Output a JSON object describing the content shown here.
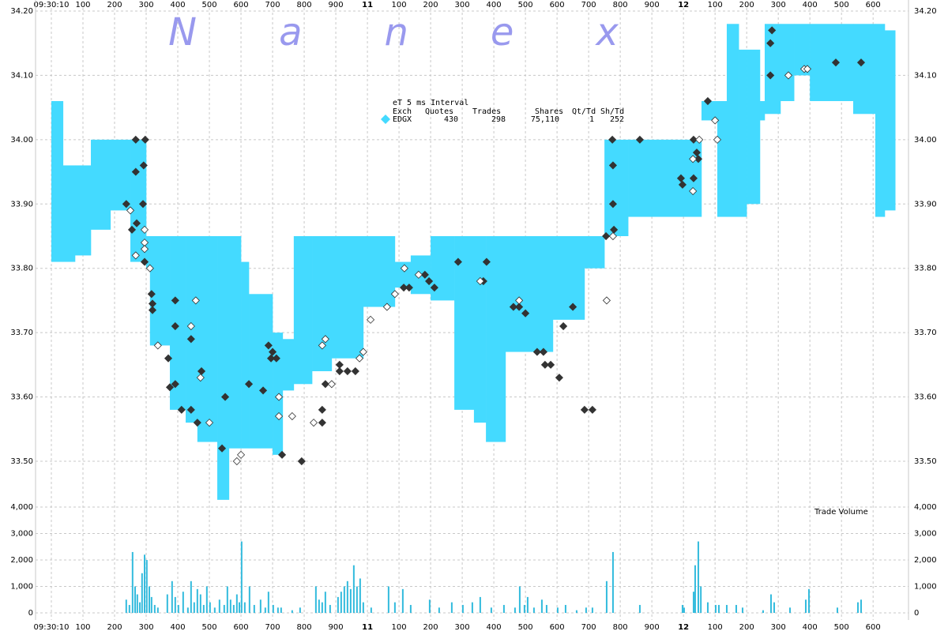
{
  "chart_data": [
    {
      "type": "band",
      "watermark": "Nanex",
      "xlim": [
        -50,
        2712
      ],
      "xticks": [
        {
          "value": 0,
          "label": "09:30:10"
        },
        100,
        200,
        300,
        400,
        500,
        600,
        700,
        800,
        900,
        {
          "value": 1000,
          "label": "11"
        },
        {
          "value": 1100,
          "label": "100"
        },
        {
          "value": 1200,
          "label": "200"
        },
        {
          "value": 1300,
          "label": "300"
        },
        {
          "value": 1400,
          "label": "400"
        },
        {
          "value": 1500,
          "label": "500"
        },
        {
          "value": 1600,
          "label": "600"
        },
        {
          "value": 1700,
          "label": "700"
        },
        {
          "value": 1800,
          "label": "800"
        },
        {
          "value": 1900,
          "label": "900"
        },
        {
          "value": 2000,
          "label": "12"
        },
        {
          "value": 2100,
          "label": "100"
        },
        {
          "value": 2200,
          "label": "200"
        },
        {
          "value": 2300,
          "label": "300"
        },
        {
          "value": 2400,
          "label": "400"
        },
        {
          "value": 2500,
          "label": "500"
        },
        {
          "value": 2600,
          "label": "600"
        }
      ],
      "ylim": [
        33.43,
        34.2
      ],
      "yticks": [
        {
          "value": 33.5,
          "label": "33.50"
        },
        {
          "value": 33.6,
          "label": "33.60"
        },
        {
          "value": 33.7,
          "label": "33.70"
        },
        {
          "value": 33.8,
          "label": "33.80"
        },
        {
          "value": 33.9,
          "label": "33.90"
        },
        {
          "value": 34.0,
          "label": "34.00"
        },
        {
          "value": 34.1,
          "label": "34.10"
        },
        {
          "value": 34.2,
          "label": "34.20"
        }
      ],
      "grid": true,
      "legend": {
        "title": "eT 5 ms Interval",
        "columns": [
          "Exch",
          "Quotes",
          "Trades",
          "Shares",
          "Qt/Td",
          "Sh/Td"
        ],
        "rows": [
          {
            "name": "EDGX",
            "color": "#44daff",
            "cells": [
              "430",
              "298",
              "75,110",
              "1",
              "252"
            ]
          }
        ]
      },
      "band": {
        "color": "#44daff",
        "x": [
          0,
          37,
          75,
          125,
          187,
          250,
          300,
          312,
          375,
          425,
          462,
          525,
          562,
          600,
          625,
          662,
          700,
          732,
          767,
          825,
          887,
          987,
          1087,
          1137,
          1200,
          1275,
          1337,
          1375,
          1437,
          1587,
          1687,
          1750,
          1825,
          2012,
          2057,
          2107,
          2137,
          2175,
          2200,
          2242,
          2257,
          2307,
          2350,
          2400,
          2537,
          2607,
          2637,
          2670
        ],
        "high": [
          34.06,
          33.96,
          33.96,
          34.0,
          34.0,
          34.0,
          33.85,
          33.85,
          33.85,
          33.85,
          33.85,
          33.85,
          33.85,
          33.81,
          33.76,
          33.76,
          33.7,
          33.69,
          33.85,
          33.85,
          33.85,
          33.85,
          33.81,
          33.82,
          33.85,
          33.85,
          33.85,
          33.85,
          33.85,
          33.85,
          33.85,
          34.0,
          34.0,
          34.0,
          34.06,
          34.06,
          34.18,
          34.14,
          34.14,
          34.06,
          34.18,
          34.18,
          34.18,
          34.18,
          34.18,
          34.18,
          34.17,
          null
        ],
        "low": [
          33.81,
          33.81,
          33.82,
          33.86,
          33.89,
          33.81,
          33.8,
          33.68,
          33.58,
          33.56,
          33.53,
          33.44,
          33.52,
          33.52,
          33.52,
          33.52,
          33.51,
          33.61,
          33.62,
          33.64,
          33.66,
          33.74,
          33.77,
          33.76,
          33.75,
          33.58,
          33.56,
          33.53,
          33.67,
          33.72,
          33.8,
          33.85,
          33.88,
          33.88,
          34.03,
          33.88,
          33.88,
          33.88,
          33.9,
          34.03,
          34.04,
          34.06,
          34.1,
          34.06,
          34.04,
          33.88,
          33.89,
          null
        ]
      },
      "trades": [
        {
          "color": "#333333",
          "x": [
            267,
            297,
            267,
            292,
            290,
            237,
            255,
            270,
            295,
            317,
            320,
            320,
            392,
            392,
            442,
            370,
            375,
            392,
            412,
            442,
            475,
            462,
            550,
            540,
            625,
            670,
            687,
            700,
            695,
            712,
            730,
            792,
            867,
            857,
            857,
            912,
            912,
            937,
            962,
            1115,
            1132,
            1182,
            1195,
            1212,
            1287,
            1367,
            1377,
            1462,
            1480,
            1500,
            1537,
            1557,
            1562,
            1580,
            1607,
            1620,
            1650,
            1687,
            1712,
            1755,
            1775,
            1777,
            1777,
            1780,
            1862,
            1992,
            1997,
            2032,
            2032,
            2042,
            2047,
            2077,
            2275,
            2280,
            2275,
            2482,
            2562
          ],
          "y": [
            34.0,
            34.0,
            33.95,
            33.96,
            33.9,
            33.9,
            33.86,
            33.87,
            33.81,
            33.76,
            33.745,
            33.735,
            33.75,
            33.71,
            33.69,
            33.66,
            33.615,
            33.62,
            33.58,
            33.58,
            33.64,
            33.56,
            33.6,
            33.52,
            33.62,
            33.61,
            33.68,
            33.67,
            33.66,
            33.66,
            33.51,
            33.5,
            33.62,
            33.58,
            33.56,
            33.65,
            33.64,
            33.64,
            33.64,
            33.77,
            33.77,
            33.79,
            33.78,
            33.77,
            33.81,
            33.78,
            33.81,
            33.74,
            33.74,
            33.73,
            33.67,
            33.67,
            33.65,
            33.65,
            33.63,
            33.71,
            33.74,
            33.58,
            33.58,
            33.85,
            34.0,
            33.96,
            33.9,
            33.86,
            34.0,
            33.94,
            33.93,
            34.0,
            33.94,
            33.98,
            33.97,
            34.06,
            34.15,
            34.17,
            34.1,
            34.12,
            34.12
          ]
        },
        {
          "color": "#ffffff",
          "x": [
            250,
            267,
            295,
            295,
            295,
            312,
            337,
            442,
            457,
            472,
            500,
            587,
            600,
            720,
            720,
            762,
            830,
            857,
            867,
            887,
            975,
            987,
            1010,
            1062,
            1087,
            1117,
            1162,
            1357,
            1480,
            1757,
            1777,
            2030,
            2030,
            2050,
            2107,
            2100,
            2332,
            2382,
            2392
          ],
          "y": [
            33.89,
            33.82,
            33.84,
            33.83,
            33.86,
            33.8,
            33.68,
            33.71,
            33.75,
            33.63,
            33.56,
            33.5,
            33.51,
            33.6,
            33.57,
            33.57,
            33.56,
            33.68,
            33.69,
            33.62,
            33.66,
            33.67,
            33.72,
            33.74,
            33.76,
            33.8,
            33.79,
            33.78,
            33.75,
            33.75,
            33.85,
            33.92,
            33.97,
            34.0,
            34.0,
            34.03,
            34.1,
            34.11,
            34.11
          ]
        }
      ]
    },
    {
      "type": "bar",
      "label": "Trade Volume",
      "color": "#33bbdd",
      "ylim": [
        0,
        4000
      ],
      "yticks": [
        0,
        {
          "value": 1000,
          "label": "1,000"
        },
        {
          "value": 2000,
          "label": "2,000"
        },
        {
          "value": 3000,
          "label": "3,000"
        },
        {
          "value": 4000,
          "label": "4,000"
        }
      ],
      "x": [
        237,
        247,
        257,
        265,
        272,
        280,
        287,
        295,
        302,
        310,
        317,
        327,
        337,
        367,
        382,
        392,
        402,
        417,
        432,
        442,
        452,
        462,
        472,
        482,
        492,
        502,
        517,
        532,
        547,
        557,
        567,
        577,
        587,
        595,
        602,
        612,
        627,
        642,
        662,
        677,
        687,
        702,
        717,
        727,
        762,
        787,
        837,
        847,
        857,
        867,
        882,
        907,
        917,
        927,
        937,
        947,
        957,
        967,
        977,
        987,
        1012,
        1067,
        1087,
        1112,
        1137,
        1197,
        1227,
        1267,
        1302,
        1332,
        1357,
        1392,
        1432,
        1467,
        1482,
        1497,
        1507,
        1527,
        1552,
        1567,
        1602,
        1627,
        1662,
        1692,
        1712,
        1757,
        1777,
        1862,
        1997,
        2002,
        2032,
        2037,
        2047,
        2055,
        2077,
        2102,
        2112,
        2137,
        2167,
        2187,
        2252,
        2277,
        2287,
        2337,
        2387,
        2397,
        2487,
        2552,
        2562
      ],
      "values": [
        500,
        300,
        2300,
        1000,
        700,
        400,
        1500,
        2200,
        2000,
        1000,
        600,
        300,
        200,
        700,
        1200,
        600,
        300,
        800,
        200,
        1200,
        400,
        900,
        700,
        300,
        1000,
        400,
        200,
        500,
        300,
        1000,
        500,
        300,
        700,
        400,
        2700,
        400,
        1000,
        300,
        500,
        200,
        800,
        300,
        200,
        200,
        100,
        200,
        1000,
        500,
        400,
        800,
        300,
        600,
        800,
        1000,
        1200,
        900,
        1800,
        1000,
        1300,
        400,
        200,
        1000,
        400,
        900,
        300,
        500,
        200,
        400,
        300,
        400,
        600,
        200,
        300,
        200,
        1000,
        300,
        600,
        200,
        500,
        300,
        200,
        300,
        100,
        200,
        200,
        1200,
        2300,
        300,
        300,
        200,
        800,
        1800,
        2700,
        1000,
        400,
        300,
        300,
        300,
        300,
        200,
        100,
        700,
        400,
        200,
        500,
        900,
        200,
        400,
        500
      ]
    }
  ]
}
